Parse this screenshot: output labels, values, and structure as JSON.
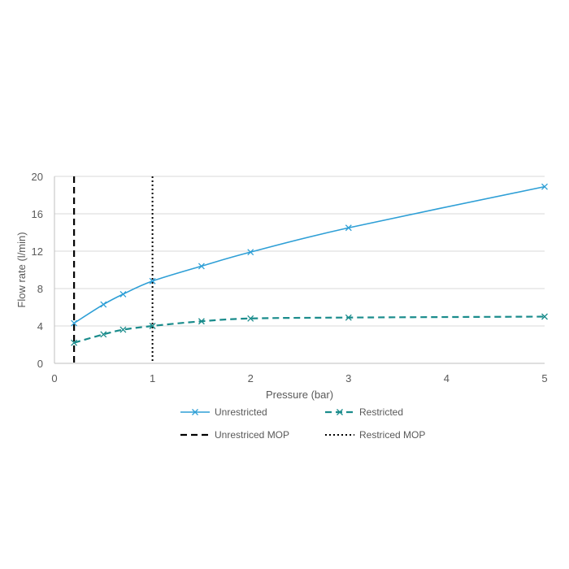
{
  "chart_data": {
    "type": "line",
    "xlabel": "Pressure (bar)",
    "ylabel": "Flow rate (l/min)",
    "xlim": [
      0,
      5
    ],
    "ylim": [
      0,
      20
    ],
    "x_ticks": [
      "0",
      "1",
      "2",
      "3",
      "4",
      "5"
    ],
    "y_ticks": [
      "0",
      "4",
      "8",
      "12",
      "16",
      "20"
    ],
    "grid": "horizontal",
    "legend_position": "bottom",
    "series": [
      {
        "name": "Unrestricted",
        "style": "solid",
        "color": "#2E9FD6",
        "x": [
          0.2,
          0.5,
          0.7,
          1.0,
          1.5,
          2.0,
          3.0,
          5.0
        ],
        "y": [
          4.3,
          6.3,
          7.4,
          8.8,
          10.4,
          11.9,
          14.5,
          18.9
        ]
      },
      {
        "name": "Restricted",
        "style": "dashed",
        "color": "#1A8C8C",
        "x": [
          0.2,
          0.5,
          0.7,
          1.0,
          1.5,
          2.0,
          3.0,
          5.0
        ],
        "y": [
          2.2,
          3.1,
          3.6,
          4.0,
          4.5,
          4.8,
          4.9,
          5.0
        ]
      }
    ],
    "vertical_lines": [
      {
        "name": "Unrestriced MOP",
        "x": 0.2,
        "style": "dashed",
        "color": "#000000"
      },
      {
        "name": "Restriced MOP",
        "x": 1.0,
        "style": "dotted",
        "color": "#000000"
      }
    ]
  }
}
